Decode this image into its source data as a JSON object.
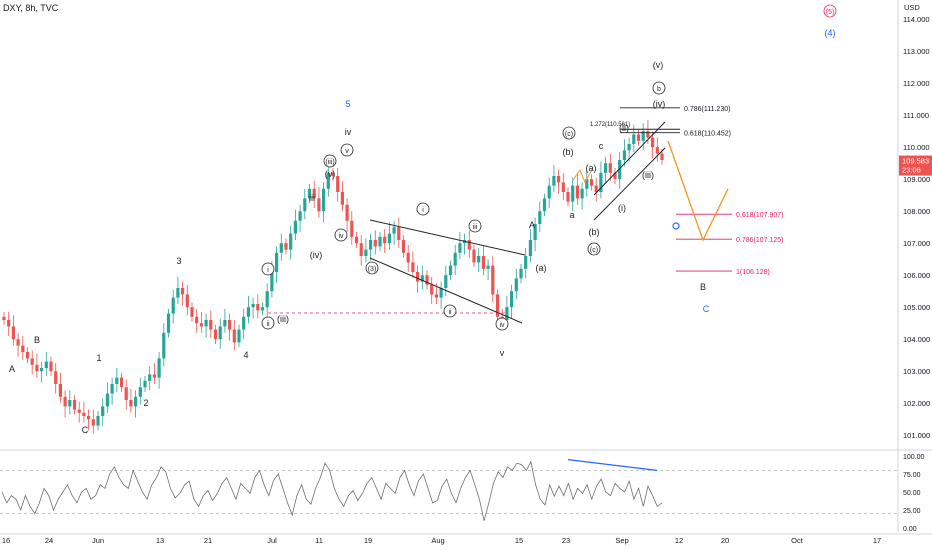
{
  "header": {
    "symbol": "DXY, 8h, TVC"
  },
  "colors": {
    "up": "#26a69a",
    "down": "#ef5350",
    "wave": "#222222",
    "blue": "#2962ff",
    "orange": "#f7941d",
    "fib": "#e91e63",
    "grid": "#b0b0b0",
    "axis": "#787b86",
    "price_bg": "#ef5350",
    "rsi_line": "#6e6e6e",
    "divergence": "#2962ff"
  },
  "price_axis": {
    "currency": "USD",
    "ticks": [
      "114.000",
      "113.000",
      "112.000",
      "111.000",
      "110.000",
      "109.000",
      "108.000",
      "107.000",
      "106.000",
      "105.000",
      "104.000",
      "103.000",
      "102.000",
      "101.000"
    ],
    "last_price": "109.583",
    "countdown": "23:06"
  },
  "time_axis": {
    "ticks": [
      "16",
      "24",
      "Jun",
      "13",
      "21",
      "Jul",
      "11",
      "19",
      "Aug",
      "15",
      "23",
      "Sep",
      "12",
      "20",
      "Oct",
      "17"
    ]
  },
  "rsi_axis": {
    "ticks": [
      "100.00",
      "75.00",
      "50.00",
      "25.00",
      "0.00"
    ]
  },
  "chart_data": [
    {
      "type": "candlestick",
      "title": "DXY, 8h, TVC",
      "ylim": [
        100.6,
        114.6
      ],
      "approx_closes": [
        104.6,
        104.4,
        104.0,
        103.8,
        103.6,
        103.4,
        103.2,
        103.0,
        103.1,
        103.3,
        103.0,
        102.6,
        102.2,
        101.9,
        102.1,
        101.8,
        101.7,
        101.6,
        101.5,
        101.3,
        101.6,
        101.9,
        102.3,
        102.6,
        102.8,
        102.5,
        102.1,
        101.9,
        102.2,
        102.5,
        102.7,
        102.9,
        102.8,
        103.4,
        104.2,
        104.8,
        105.3,
        105.6,
        105.4,
        105.0,
        104.7,
        104.5,
        104.4,
        104.6,
        104.3,
        104.0,
        104.4,
        104.6,
        104.3,
        103.9,
        104.3,
        104.7,
        105.0,
        105.1,
        104.9,
        105.0,
        105.5,
        106.1,
        106.7,
        107.0,
        106.8,
        107.3,
        107.7,
        108.0,
        108.4,
        108.7,
        108.4,
        108.0,
        108.7,
        109.2,
        109.1,
        108.6,
        108.2,
        107.7,
        107.2,
        107.0,
        106.6,
        106.8,
        107.1,
        106.9,
        107.2,
        107.0,
        107.3,
        107.5,
        107.1,
        106.7,
        106.4,
        106.1,
        105.8,
        106.0,
        105.7,
        105.4,
        105.3,
        105.6,
        106.0,
        106.3,
        106.7,
        107.0,
        107.1,
        106.8,
        106.4,
        106.6,
        106.2,
        106.3,
        105.4,
        104.7,
        104.6,
        105.0,
        105.5,
        105.9,
        106.2,
        106.6,
        107.1,
        107.6,
        108.0,
        108.4,
        108.8,
        109.1,
        108.9,
        108.6,
        108.3,
        108.8,
        108.4,
        108.7,
        109.0,
        108.8,
        108.6,
        109.2,
        109.5,
        109.2,
        109.0,
        109.6,
        109.9,
        110.1,
        110.4,
        110.2,
        110.5,
        110.3,
        110.0,
        109.8,
        109.6
      ],
      "levels": [
        {
          "label": "0.786(111.230)",
          "value": 111.23
        },
        {
          "label": "0.618(110.452)",
          "value": 110.452
        },
        {
          "label": "1.272(110.561)",
          "value": 110.561
        },
        {
          "label": "0.618(107.907)",
          "value": 107.907
        },
        {
          "label": "0.786(107.125)",
          "value": 107.125
        },
        {
          "label": "1(106.128)",
          "value": 106.128
        }
      ],
      "projection": [
        [
          0,
          110.2
        ],
        [
          1,
          107.1
        ],
        [
          2,
          108.7
        ]
      ]
    },
    {
      "type": "line",
      "title": "RSI",
      "ylim": [
        0,
        100
      ],
      "bands": [
        20,
        80
      ],
      "approx_values": [
        50,
        35,
        45,
        40,
        25,
        45,
        30,
        20,
        35,
        55,
        45,
        25,
        40,
        50,
        60,
        45,
        35,
        50,
        55,
        40,
        45,
        60,
        55,
        75,
        85,
        70,
        60,
        55,
        80,
        65,
        50,
        40,
        60,
        70,
        85,
        78,
        55,
        42,
        48,
        60,
        65,
        40,
        30,
        45,
        52,
        38,
        48,
        62,
        70,
        55,
        40,
        62,
        55,
        48,
        70,
        80,
        60,
        45,
        66,
        75,
        55,
        35,
        18,
        45,
        60,
        40,
        33,
        55,
        70,
        90,
        80,
        55,
        40,
        30,
        45,
        52,
        38,
        48,
        62,
        70,
        55,
        40,
        62,
        55,
        48,
        70,
        80,
        60,
        45,
        66,
        75,
        55,
        35,
        38,
        58,
        68,
        48,
        35,
        55,
        70,
        80,
        60,
        40,
        10,
        35,
        62,
        78,
        70,
        85,
        80,
        90,
        88,
        80,
        92,
        60,
        40,
        32,
        60,
        44,
        58,
        45,
        62,
        40,
        55,
        48,
        60,
        40,
        58,
        68,
        50,
        45,
        62,
        55,
        50,
        65,
        40,
        55,
        30,
        58,
        45,
        30,
        35
      ]
    }
  ],
  "wave_labels": [
    "A",
    "B",
    "C",
    "1",
    "2",
    "3",
    "4",
    "i",
    "ii",
    "(iii)",
    "(iv)",
    "(v)",
    "iii",
    "iv",
    "v",
    "(iii)",
    "iv",
    "5",
    "(3)",
    "i",
    "ii",
    "iii",
    "iv",
    "v",
    "A",
    "(a)",
    "(b)",
    "(c)",
    "a",
    "(a)",
    "(b)",
    "(c)",
    "b",
    "c",
    "(i)",
    "(ii)",
    "(iii)",
    "(iv)",
    "(v)",
    "B",
    "C",
    "(4)",
    "(5)",
    "5"
  ]
}
